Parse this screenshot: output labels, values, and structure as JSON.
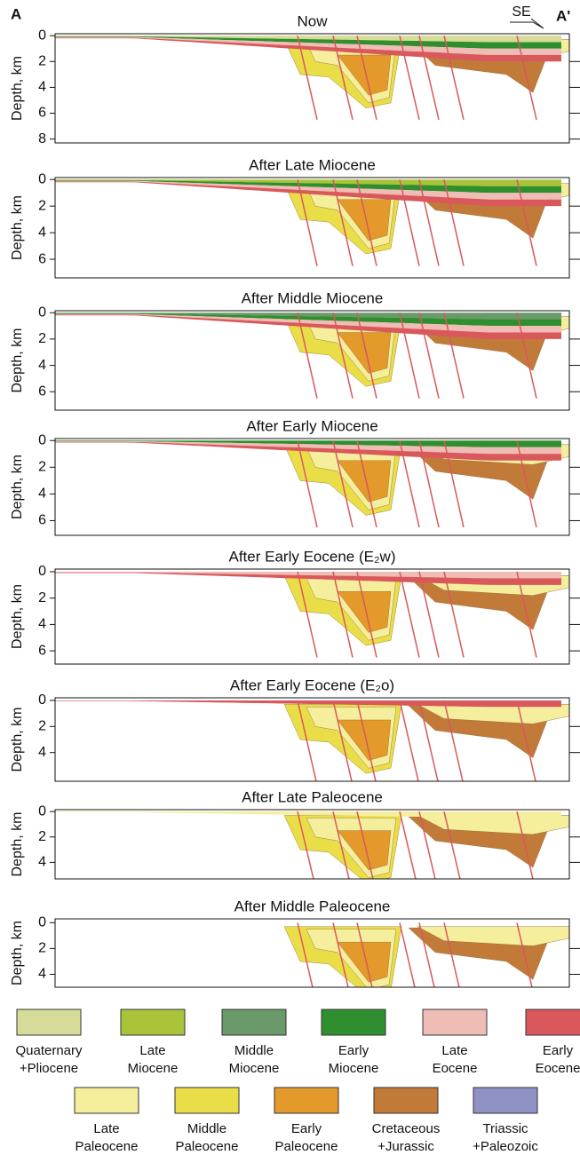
{
  "corner_left": "A",
  "corner_right": "A'",
  "direction": "SE",
  "y_label": "Depth, km",
  "panels": [
    {
      "title": "Now",
      "ylim": [
        -0.15,
        8.3
      ],
      "yticks": [
        0,
        2,
        4,
        6,
        8
      ]
    },
    {
      "title": "After Late Miocene",
      "ylim": [
        -0.15,
        7.4
      ],
      "yticks": [
        0,
        2,
        4,
        6
      ]
    },
    {
      "title": "After Middle Miocene",
      "ylim": [
        -0.15,
        7.4
      ],
      "yticks": [
        0,
        2,
        4,
        6
      ]
    },
    {
      "title": "After Early Miocene",
      "ylim": [
        -0.15,
        7.1
      ],
      "yticks": [
        0,
        2,
        4,
        6
      ]
    },
    {
      "title": "After Early Eocene (E₂w)",
      "ylim": [
        -0.2,
        7
      ],
      "yticks": [
        0,
        2,
        4,
        6
      ]
    },
    {
      "title": "After Early Eocene (E₂o)",
      "ylim": [
        -0.2,
        6.2
      ],
      "yticks": [
        0,
        2,
        4
      ]
    },
    {
      "title": "After Late Paleocene",
      "ylim": [
        -0.15,
        5.3
      ],
      "yticks": [
        0,
        2,
        4
      ]
    },
    {
      "title": "After Middle Paleocene",
      "ylim": [
        -0.3,
        5.0
      ],
      "yticks": [
        0,
        2,
        4
      ]
    }
  ],
  "legend": [
    {
      "lines": [
        "Quaternary",
        "+Pliocene"
      ],
      "color": "#d6dc98"
    },
    {
      "lines": [
        "Late",
        "Miocene"
      ],
      "color": "#a9c43a"
    },
    {
      "lines": [
        "Middle",
        "Miocene"
      ],
      "color": "#6a9a6a"
    },
    {
      "lines": [
        "Early",
        "Miocene"
      ],
      "color": "#2f8f2f"
    },
    {
      "lines": [
        "Late",
        "Eocene"
      ],
      "color": "#f0bcb6"
    },
    {
      "lines": [
        "Early",
        "Eocene"
      ],
      "color": "#d8585c"
    },
    {
      "lines": [
        "Late",
        "Paleocene"
      ],
      "color": "#f5ee9c"
    },
    {
      "lines": [
        "Middle",
        "Paleocene"
      ],
      "color": "#e9de48"
    },
    {
      "lines": [
        "Early",
        "Paleocene"
      ],
      "color": "#e39a2a"
    },
    {
      "lines": [
        "Cretaceous",
        "+Jurassic"
      ],
      "color": "#c27a38"
    },
    {
      "lines": [
        "Triassic",
        "+Paleozoic"
      ],
      "color": "#8e92c4"
    }
  ]
}
